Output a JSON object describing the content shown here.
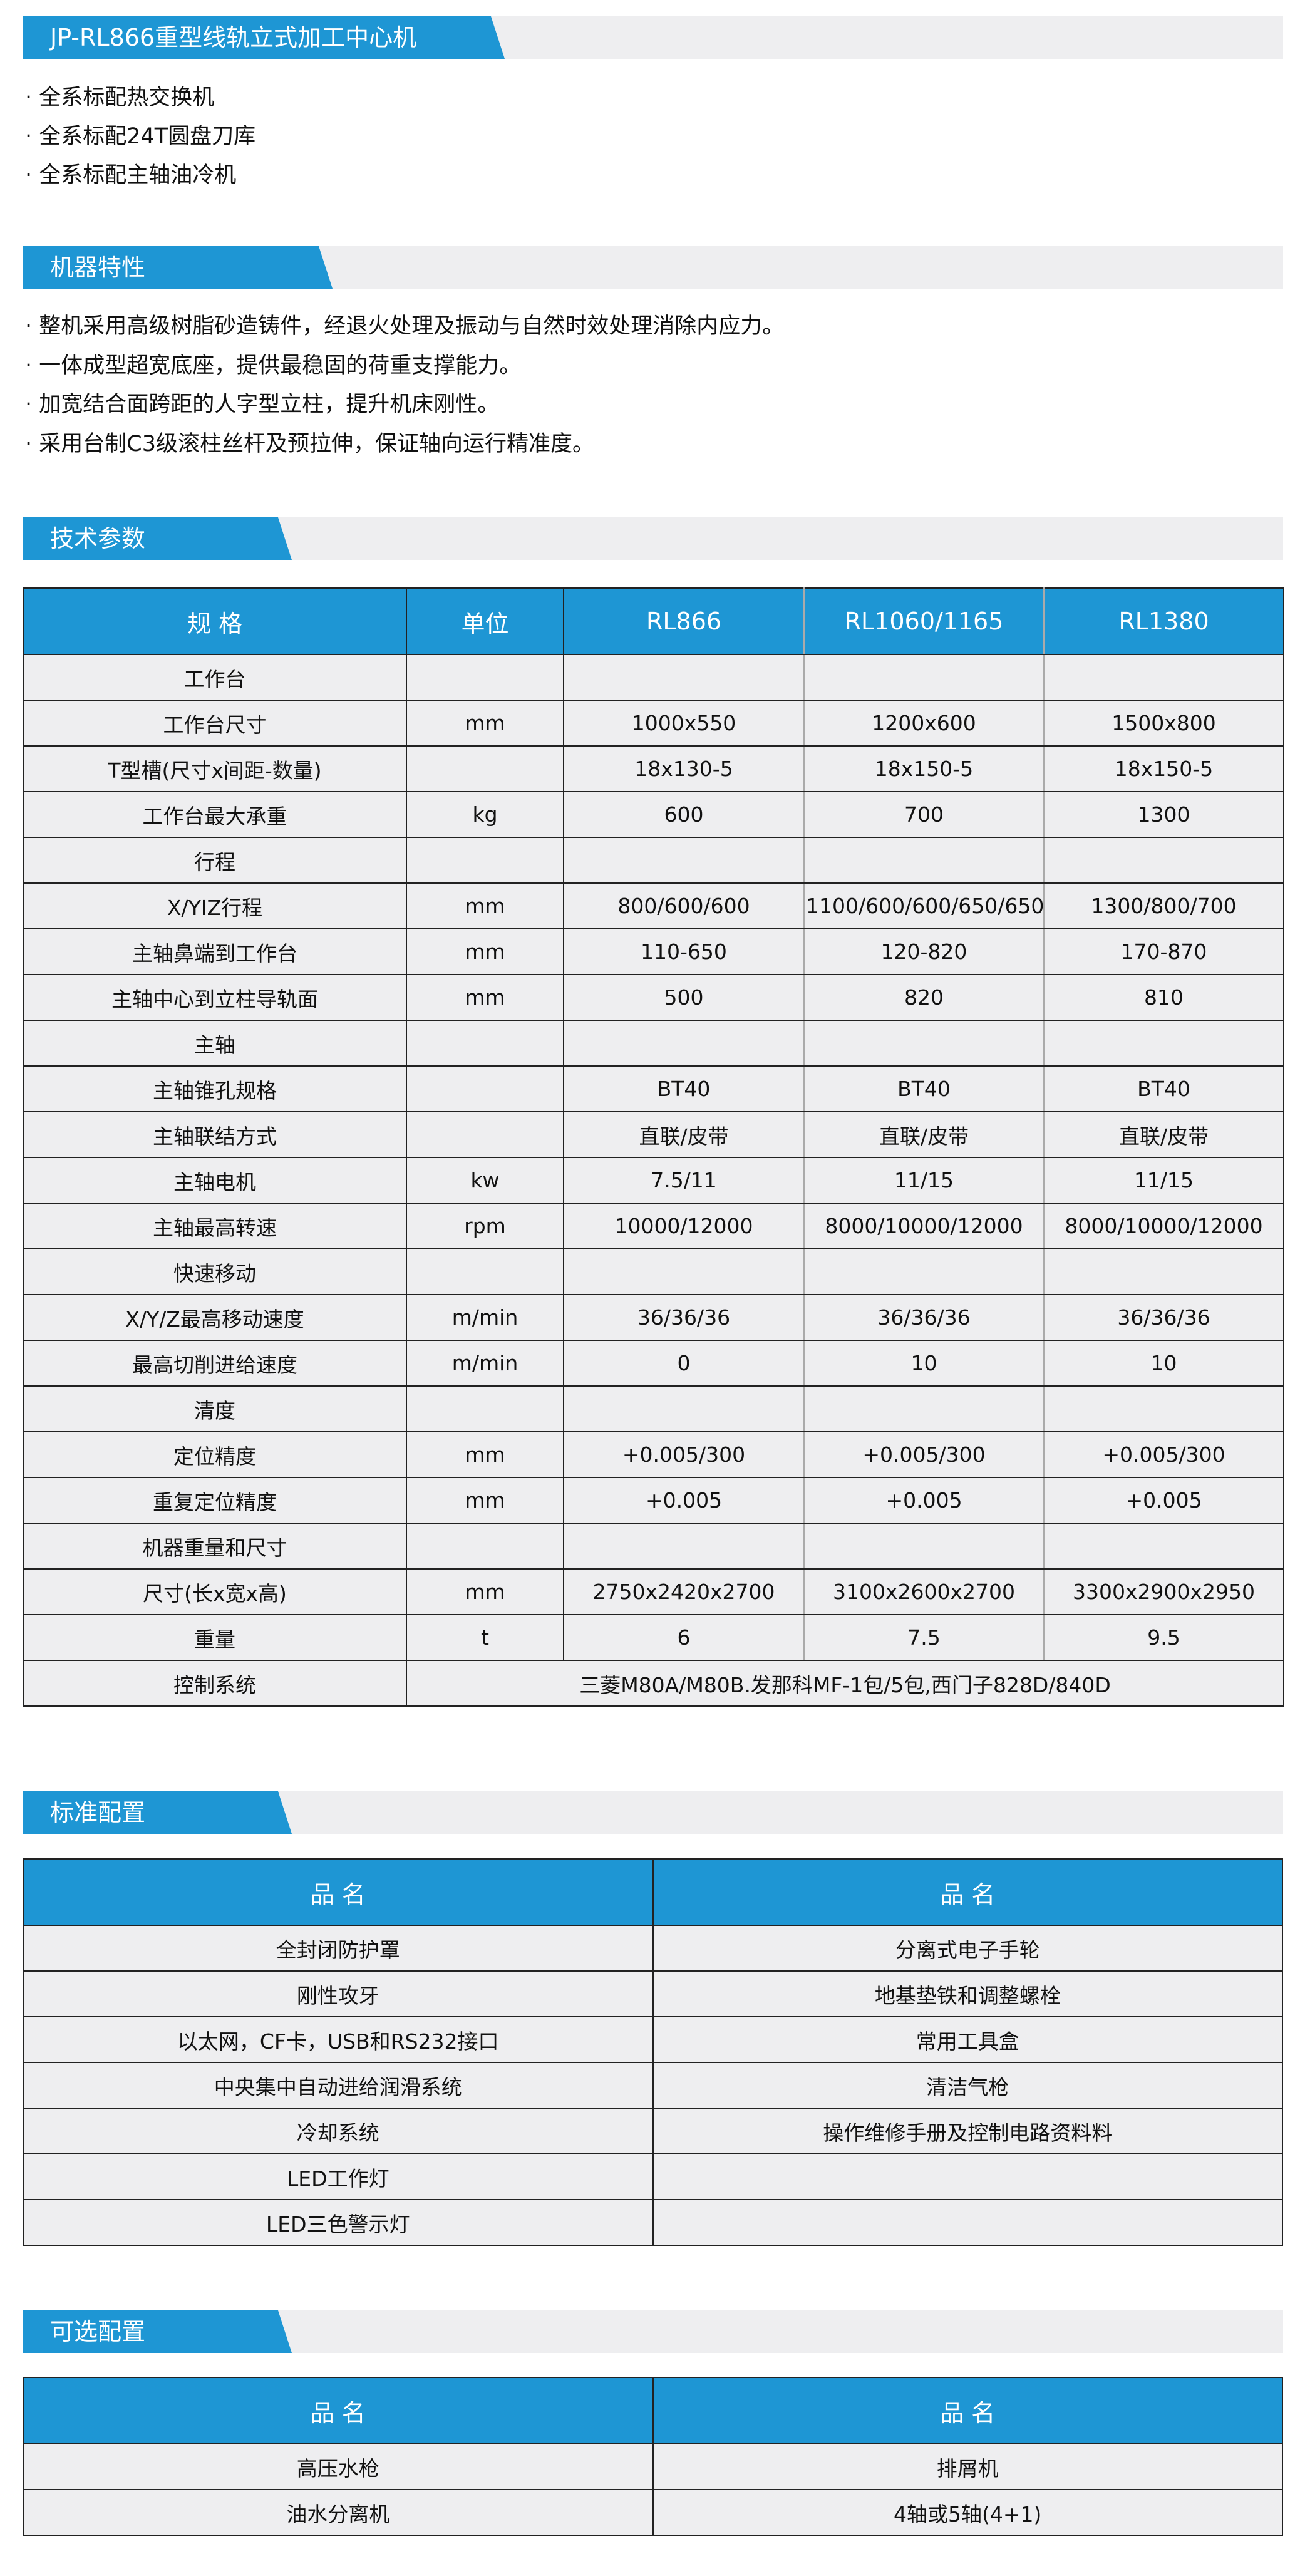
{
  "colors": {
    "accent": "#1e96d4",
    "row_bg": "#eeeef0"
  },
  "section1": {
    "title": "JP-RL866重型线轨立式加工中心机",
    "bullets": [
      "· 全系标配热交换机",
      "· 全系标配24T圆盘刀库",
      "· 全系标配主轴油冷机"
    ]
  },
  "section2": {
    "title": "机器特性",
    "bullets": [
      "· 整机采用高级树脂砂造铸件，经退火处理及振动与自然时效处理消除内应力。",
      "· 一体成型超宽底座，提供最稳固的荷重支撑能力。",
      "· 加宽结合面跨距的人字型立柱，提升机床刚性。",
      "· 采用台制C3级滚柱丝杆及预拉伸，保证轴向运行精准度。"
    ]
  },
  "section3": {
    "title": "技术参数",
    "headers": [
      "规  格",
      "单位",
      "RL866",
      "RL1060/1165",
      "RL1380"
    ],
    "rows": [
      [
        "工作台",
        "",
        "",
        "",
        ""
      ],
      [
        "工作台尺寸",
        "mm",
        "1000x550",
        "1200x600",
        "1500x800"
      ],
      [
        "T型槽(尺寸x间距-数量)",
        "",
        "18x130-5",
        "18x150-5",
        "18x150-5"
      ],
      [
        "工作台最大承重",
        "kg",
        "600",
        "700",
        "1300"
      ],
      [
        "行程",
        "",
        "",
        "",
        ""
      ],
      [
        "X/YIZ行程",
        "mm",
        "800/600/600",
        "1100/600/600/650/650",
        "1300/800/700"
      ],
      [
        "主轴鼻端到工作台",
        "mm",
        "110-650",
        "120-820",
        "170-870"
      ],
      [
        "主轴中心到立柱导轨面",
        "mm",
        "500",
        "820",
        "810"
      ],
      [
        "主轴",
        "",
        "",
        "",
        ""
      ],
      [
        "主轴锥孔规格",
        "",
        "BT40",
        "BT40",
        "BT40"
      ],
      [
        "主轴联结方式",
        "",
        "直联/皮带",
        "直联/皮带",
        "直联/皮带"
      ],
      [
        "主轴电机",
        "kw",
        "7.5/11",
        "11/15",
        "11/15"
      ],
      [
        "主轴最高转速",
        "rpm",
        "10000/12000",
        "8000/10000/12000",
        "8000/10000/12000"
      ],
      [
        "快速移动",
        "",
        "",
        "",
        ""
      ],
      [
        "X/Y/Z最高移动速度",
        "m/min",
        "36/36/36",
        "36/36/36",
        "36/36/36"
      ],
      [
        "最高切削进给速度",
        "m/min",
        "0",
        "10",
        "10"
      ],
      [
        "清度",
        "",
        "",
        "",
        ""
      ],
      [
        "定位精度",
        "mm",
        "+0.005/300",
        "+0.005/300",
        "+0.005/300"
      ],
      [
        "重复定位精度",
        "mm",
        "+0.005",
        "+0.005",
        "+0.005"
      ],
      [
        "机器重量和尺寸",
        "",
        "",
        "",
        ""
      ],
      [
        "尺寸(长x宽x高)",
        "mm",
        "2750x2420x2700",
        "3100x2600x2700",
        "3300x2900x2950"
      ],
      [
        "重量",
        "t",
        "6",
        "7.5",
        "9.5"
      ]
    ],
    "control": {
      "label": "控制系统",
      "value": "三菱M80A/M80B.发那科MF-1包/5包,西门子828D/840D"
    }
  },
  "section4": {
    "title": "标准配置",
    "headers": [
      "品 名",
      "品 名"
    ],
    "rows": [
      [
        "全封闭防护罩",
        "分离式电子手轮"
      ],
      [
        "刚性攻牙",
        "地基垫铁和调整螺栓"
      ],
      [
        "以太网，CF卡，USB和RS232接口",
        "常用工具盒"
      ],
      [
        "中央集中自动进给润滑系统",
        "清洁气枪"
      ],
      [
        "冷却系统",
        "操作维修手册及控制电路资料料"
      ],
      [
        "LED工作灯",
        ""
      ],
      [
        "LED三色警示灯",
        ""
      ]
    ]
  },
  "section5": {
    "title": "可选配置",
    "headers": [
      "品 名",
      "品 名"
    ],
    "rows": [
      [
        "高压水枪",
        "排屑机"
      ],
      [
        "油水分离机",
        "4轴或5轴(4+1)"
      ]
    ]
  }
}
